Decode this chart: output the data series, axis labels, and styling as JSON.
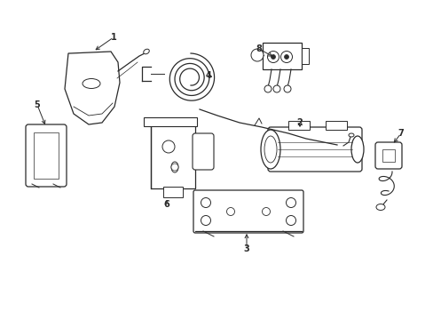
{
  "bg_color": "#ffffff",
  "line_color": "#2a2a2a",
  "figsize": [
    4.89,
    3.6
  ],
  "dpi": 100,
  "labels": {
    "1": [
      1.28,
      0.82,
      0.95,
      0.72
    ],
    "2": [
      3.38,
      0.52,
      3.15,
      0.59
    ],
    "3": [
      2.72,
      0.18,
      2.72,
      0.26
    ],
    "4": [
      2.22,
      0.68,
      2.42,
      0.68
    ],
    "5": [
      0.55,
      0.52,
      0.65,
      0.61
    ],
    "6": [
      1.88,
      0.27,
      1.88,
      0.36
    ],
    "7": [
      4.42,
      0.5,
      4.35,
      0.57
    ],
    "8": [
      2.95,
      0.87,
      3.1,
      0.82
    ]
  }
}
